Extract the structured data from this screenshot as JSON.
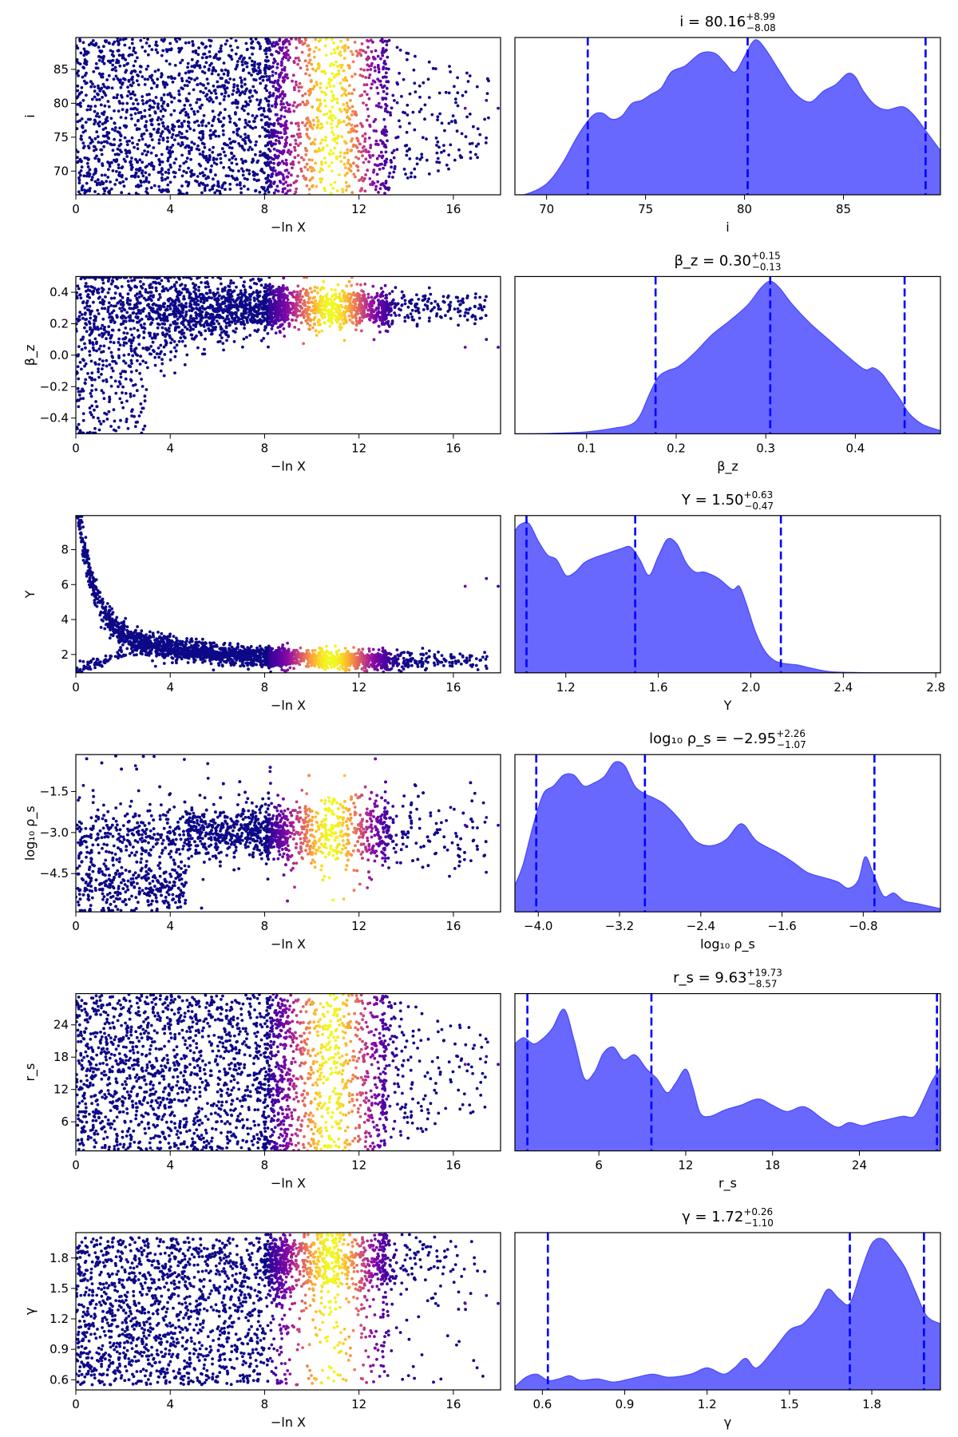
{
  "figure": {
    "type": "dynesty traceplot",
    "rows": 6,
    "colors": {
      "hist_fill": "#5b5bff",
      "hist_edge": "#4747ff",
      "quantile_line": "#0000ff",
      "trace_colormap": "plasma",
      "trace_low": "#0d0887",
      "trace_high": "#f0f921"
    }
  },
  "chart_data": [
    {
      "id": "i",
      "trace": {
        "type": "scatter",
        "xlabel": "−ln X",
        "ylabel": "i",
        "xlim": [
          0,
          18
        ],
        "ylim": [
          66.5,
          89.7
        ],
        "xticks": [
          0,
          4,
          8,
          12,
          16
        ],
        "xtick_labels": [
          "0",
          "4",
          "8",
          "12",
          "16"
        ],
        "yticks": [
          70,
          75,
          80,
          85
        ],
        "ytick_labels": [
          "70",
          "75",
          "80",
          "85"
        ],
        "shape": "uniform"
      },
      "posterior": {
        "type": "area",
        "xlabel": "i",
        "title_main": "i = 80.16",
        "title_sup": "+8.99",
        "title_sub": "−8.08",
        "xlim": [
          68.4,
          89.9
        ],
        "xticks": [
          70,
          75,
          80,
          85
        ],
        "xtick_labels": [
          "70",
          "75",
          "80",
          "85"
        ],
        "quantiles": [
          72.08,
          80.16,
          89.15
        ],
        "curve_x": [
          68.4,
          69.0,
          70.0,
          70.8,
          71.6,
          72.3,
          72.8,
          73.3,
          73.8,
          74.3,
          74.8,
          75.3,
          75.8,
          76.3,
          77.0,
          77.8,
          78.5,
          79.0,
          79.5,
          80.0,
          80.4,
          80.7,
          81.2,
          81.8,
          82.5,
          83.3,
          84.0,
          84.6,
          85.2,
          85.6,
          86.0,
          86.6,
          87.2,
          88.0,
          88.6,
          89.2,
          89.9
        ],
        "curve_y": [
          0.0,
          0.005,
          0.07,
          0.2,
          0.38,
          0.5,
          0.52,
          0.48,
          0.5,
          0.58,
          0.6,
          0.64,
          0.68,
          0.78,
          0.82,
          0.9,
          0.9,
          0.84,
          0.78,
          0.88,
          0.97,
          0.98,
          0.9,
          0.78,
          0.65,
          0.59,
          0.66,
          0.7,
          0.77,
          0.75,
          0.66,
          0.57,
          0.54,
          0.56,
          0.5,
          0.4,
          0.28
        ],
        "ylim": [
          0,
          1.0
        ]
      }
    },
    {
      "id": "beta_z",
      "trace": {
        "type": "scatter",
        "xlabel": "−ln X",
        "ylabel": "β_z",
        "xlim": [
          0,
          18
        ],
        "ylim": [
          -0.5,
          0.5
        ],
        "xticks": [
          0,
          4,
          8,
          12,
          16
        ],
        "xtick_labels": [
          "0",
          "4",
          "8",
          "12",
          "16"
        ],
        "yticks": [
          -0.4,
          -0.2,
          0.0,
          0.2,
          0.4
        ],
        "ytick_labels": [
          "−0.4",
          "−0.2",
          "0.0",
          "0.2",
          "0.4"
        ],
        "shape": "rising"
      },
      "posterior": {
        "type": "area",
        "xlabel": "β_z",
        "title_main": "β_z = 0.30",
        "title_sup": "+0.15",
        "title_sub": "−0.13",
        "xlim": [
          0.02,
          0.495
        ],
        "xticks": [
          0.1,
          0.2,
          0.3,
          0.4
        ],
        "xtick_labels": [
          "0.1",
          "0.2",
          "0.3",
          "0.4"
        ],
        "quantiles": [
          0.177,
          0.305,
          0.455
        ],
        "curve_x": [
          0.02,
          0.06,
          0.1,
          0.13,
          0.15,
          0.16,
          0.17,
          0.18,
          0.19,
          0.2,
          0.21,
          0.225,
          0.24,
          0.26,
          0.28,
          0.295,
          0.305,
          0.315,
          0.33,
          0.35,
          0.37,
          0.39,
          0.41,
          0.42,
          0.43,
          0.44,
          0.45,
          0.46,
          0.475,
          0.495
        ],
        "curve_y": [
          0.0,
          0.003,
          0.012,
          0.035,
          0.06,
          0.12,
          0.25,
          0.36,
          0.4,
          0.42,
          0.46,
          0.54,
          0.63,
          0.72,
          0.82,
          0.93,
          0.97,
          0.93,
          0.82,
          0.7,
          0.6,
          0.5,
          0.41,
          0.42,
          0.38,
          0.3,
          0.22,
          0.13,
          0.06,
          0.02
        ],
        "ylim": [
          0,
          1.0
        ]
      }
    },
    {
      "id": "Y",
      "trace": {
        "type": "scatter",
        "xlabel": "−ln X",
        "ylabel": "Y",
        "xlim": [
          0,
          18
        ],
        "ylim": [
          0.95,
          9.95
        ],
        "xticks": [
          0,
          4,
          8,
          12,
          16
        ],
        "xtick_labels": [
          "0",
          "4",
          "8",
          "12",
          "16"
        ],
        "yticks": [
          2,
          4,
          6,
          8
        ],
        "ytick_labels": [
          "2",
          "4",
          "6",
          "8"
        ],
        "shape": "decay"
      },
      "posterior": {
        "type": "area",
        "xlabel": "Y",
        "title_main": "Y = 1.50",
        "title_sup": "+0.63",
        "title_sub": "−0.47",
        "xlim": [
          0.98,
          2.82
        ],
        "xticks": [
          1.2,
          1.6,
          2.0,
          2.4,
          2.8
        ],
        "xtick_labels": [
          "1.2",
          "1.6",
          "2.0",
          "2.4",
          "2.8"
        ],
        "quantiles": [
          1.03,
          1.5,
          2.13
        ],
        "curve_x": [
          0.98,
          1.0,
          1.04,
          1.08,
          1.12,
          1.16,
          1.2,
          1.24,
          1.28,
          1.32,
          1.38,
          1.44,
          1.48,
          1.52,
          1.56,
          1.6,
          1.64,
          1.68,
          1.72,
          1.76,
          1.8,
          1.86,
          1.92,
          1.95,
          1.98,
          2.02,
          2.06,
          2.1,
          2.14,
          2.2,
          2.26,
          2.34,
          2.45,
          2.6,
          2.82
        ],
        "curve_y": [
          0.9,
          0.94,
          0.95,
          0.84,
          0.75,
          0.72,
          0.62,
          0.64,
          0.7,
          0.73,
          0.76,
          0.79,
          0.8,
          0.72,
          0.62,
          0.74,
          0.85,
          0.82,
          0.7,
          0.64,
          0.64,
          0.6,
          0.53,
          0.55,
          0.44,
          0.26,
          0.14,
          0.08,
          0.06,
          0.05,
          0.03,
          0.008,
          0.002,
          0.0,
          0.0
        ],
        "ylim": [
          0,
          1.0
        ]
      }
    },
    {
      "id": "log10_rho_s",
      "trace": {
        "type": "scatter",
        "xlabel": "−ln X",
        "ylabel": "log₁₀ ρ_s",
        "xlim": [
          0,
          18
        ],
        "ylim": [
          -5.9,
          -0.15
        ],
        "xticks": [
          0,
          4,
          8,
          12,
          16
        ],
        "xtick_labels": [
          "0",
          "4",
          "8",
          "12",
          "16"
        ],
        "yticks": [
          -4.5,
          -3.0,
          -1.5
        ],
        "ytick_labels": [
          "−4.5",
          "−3.0",
          "−1.5"
        ],
        "shape": "band"
      },
      "posterior": {
        "type": "area",
        "xlabel": "log₁₀ ρ_s",
        "title_main": "log₁₀ ρ_s = −2.95",
        "title_sup": "+2.26",
        "title_sub": "−1.07",
        "xlim": [
          -4.23,
          -0.04
        ],
        "xticks": [
          -4.0,
          -3.2,
          -2.4,
          -1.6,
          -0.8
        ],
        "xtick_labels": [
          "−4.0",
          "−3.2",
          "−2.4",
          "−1.6",
          "−0.8"
        ],
        "quantiles": [
          -4.02,
          -2.95,
          -0.69
        ],
        "curve_x": [
          -4.23,
          -4.15,
          -4.05,
          -3.95,
          -3.85,
          -3.75,
          -3.65,
          -3.55,
          -3.45,
          -3.35,
          -3.25,
          -3.15,
          -3.05,
          -2.95,
          -2.85,
          -2.75,
          -2.6,
          -2.45,
          -2.3,
          -2.15,
          -2.0,
          -1.85,
          -1.65,
          -1.5,
          -1.35,
          -1.2,
          -1.05,
          -0.95,
          -0.85,
          -0.78,
          -0.7,
          -0.6,
          -0.5,
          -0.4,
          -0.25,
          -0.04
        ],
        "curve_y": [
          0.17,
          0.3,
          0.55,
          0.75,
          0.8,
          0.87,
          0.87,
          0.8,
          0.82,
          0.86,
          0.95,
          0.93,
          0.8,
          0.75,
          0.72,
          0.68,
          0.58,
          0.45,
          0.42,
          0.46,
          0.56,
          0.45,
          0.38,
          0.32,
          0.25,
          0.22,
          0.19,
          0.15,
          0.2,
          0.35,
          0.24,
          0.1,
          0.12,
          0.07,
          0.05,
          0.02
        ],
        "ylim": [
          0,
          1.0
        ]
      }
    },
    {
      "id": "r_s",
      "trace": {
        "type": "scatter",
        "xlabel": "−ln X",
        "ylabel": "r_s",
        "xlim": [
          0,
          18
        ],
        "ylim": [
          0.6,
          29.8
        ],
        "xticks": [
          0,
          4,
          8,
          12,
          16
        ],
        "xtick_labels": [
          "0",
          "4",
          "8",
          "12",
          "16"
        ],
        "yticks": [
          6,
          12,
          18,
          24
        ],
        "ytick_labels": [
          "6",
          "12",
          "18",
          "24"
        ],
        "shape": "uniform"
      },
      "posterior": {
        "type": "area",
        "xlabel": "r_s",
        "title_main": "r_s = 9.63",
        "title_sup": "+19.73",
        "title_sub": "−8.57",
        "xlim": [
          0.2,
          29.6
        ],
        "xticks": [
          6,
          12,
          18,
          24
        ],
        "xtick_labels": [
          "6",
          "12",
          "18",
          "24"
        ],
        "quantiles": [
          1.06,
          9.63,
          29.36
        ],
        "curve_x": [
          0.2,
          0.8,
          1.5,
          2.2,
          2.8,
          3.6,
          4.3,
          5.0,
          5.7,
          6.3,
          7.0,
          7.7,
          8.5,
          9.3,
          10.0,
          10.7,
          11.3,
          12.0,
          12.5,
          13.0,
          13.7,
          14.7,
          15.8,
          17.0,
          18.0,
          19.0,
          20.2,
          21.5,
          22.5,
          23.3,
          24.2,
          25.0,
          26.0,
          27.0,
          27.8,
          28.5,
          29.0,
          29.6
        ],
        "curve_y": [
          0.68,
          0.72,
          0.68,
          0.72,
          0.78,
          0.9,
          0.7,
          0.46,
          0.5,
          0.62,
          0.66,
          0.58,
          0.61,
          0.52,
          0.46,
          0.37,
          0.43,
          0.52,
          0.4,
          0.24,
          0.22,
          0.26,
          0.29,
          0.33,
          0.29,
          0.25,
          0.28,
          0.2,
          0.15,
          0.18,
          0.16,
          0.18,
          0.2,
          0.22,
          0.22,
          0.34,
          0.44,
          0.53
        ],
        "ylim": [
          0,
          1.0
        ]
      }
    },
    {
      "id": "gamma",
      "trace": {
        "type": "scatter",
        "xlabel": "−ln X",
        "ylabel": "γ",
        "xlim": [
          0,
          18
        ],
        "ylim": [
          0.5,
          2.05
        ],
        "xticks": [
          0,
          4,
          8,
          12,
          16
        ],
        "xtick_labels": [
          "0",
          "4",
          "8",
          "12",
          "16"
        ],
        "yticks": [
          0.6,
          0.9,
          1.2,
          1.5,
          1.8
        ],
        "ytick_labels": [
          "0.6",
          "0.9",
          "1.2",
          "1.5",
          "1.8"
        ],
        "shape": "rising_top"
      },
      "posterior": {
        "type": "area",
        "xlabel": "γ",
        "title_main": "γ = 1.72",
        "title_sup": "+0.26",
        "title_sub": "−1.10",
        "xlim": [
          0.5,
          2.05
        ],
        "xticks": [
          0.6,
          0.9,
          1.2,
          1.5,
          1.8
        ],
        "xtick_labels": [
          "0.6",
          "0.9",
          "1.2",
          "1.5",
          "1.8"
        ],
        "quantiles": [
          0.62,
          1.72,
          1.99
        ],
        "curve_x": [
          0.5,
          0.54,
          0.58,
          0.62,
          0.66,
          0.7,
          0.74,
          0.8,
          0.86,
          0.92,
          1.0,
          1.06,
          1.14,
          1.2,
          1.26,
          1.3,
          1.34,
          1.38,
          1.44,
          1.5,
          1.55,
          1.6,
          1.64,
          1.68,
          1.72,
          1.76,
          1.8,
          1.84,
          1.88,
          1.92,
          1.96,
          2.0,
          2.05
        ],
        "curve_y": [
          0.02,
          0.08,
          0.1,
          0.06,
          0.07,
          0.09,
          0.06,
          0.07,
          0.05,
          0.07,
          0.1,
          0.08,
          0.1,
          0.14,
          0.1,
          0.14,
          0.2,
          0.14,
          0.25,
          0.38,
          0.42,
          0.52,
          0.64,
          0.58,
          0.55,
          0.75,
          0.93,
          0.96,
          0.88,
          0.78,
          0.62,
          0.47,
          0.42
        ],
        "ylim": [
          0,
          1.0
        ]
      }
    }
  ]
}
